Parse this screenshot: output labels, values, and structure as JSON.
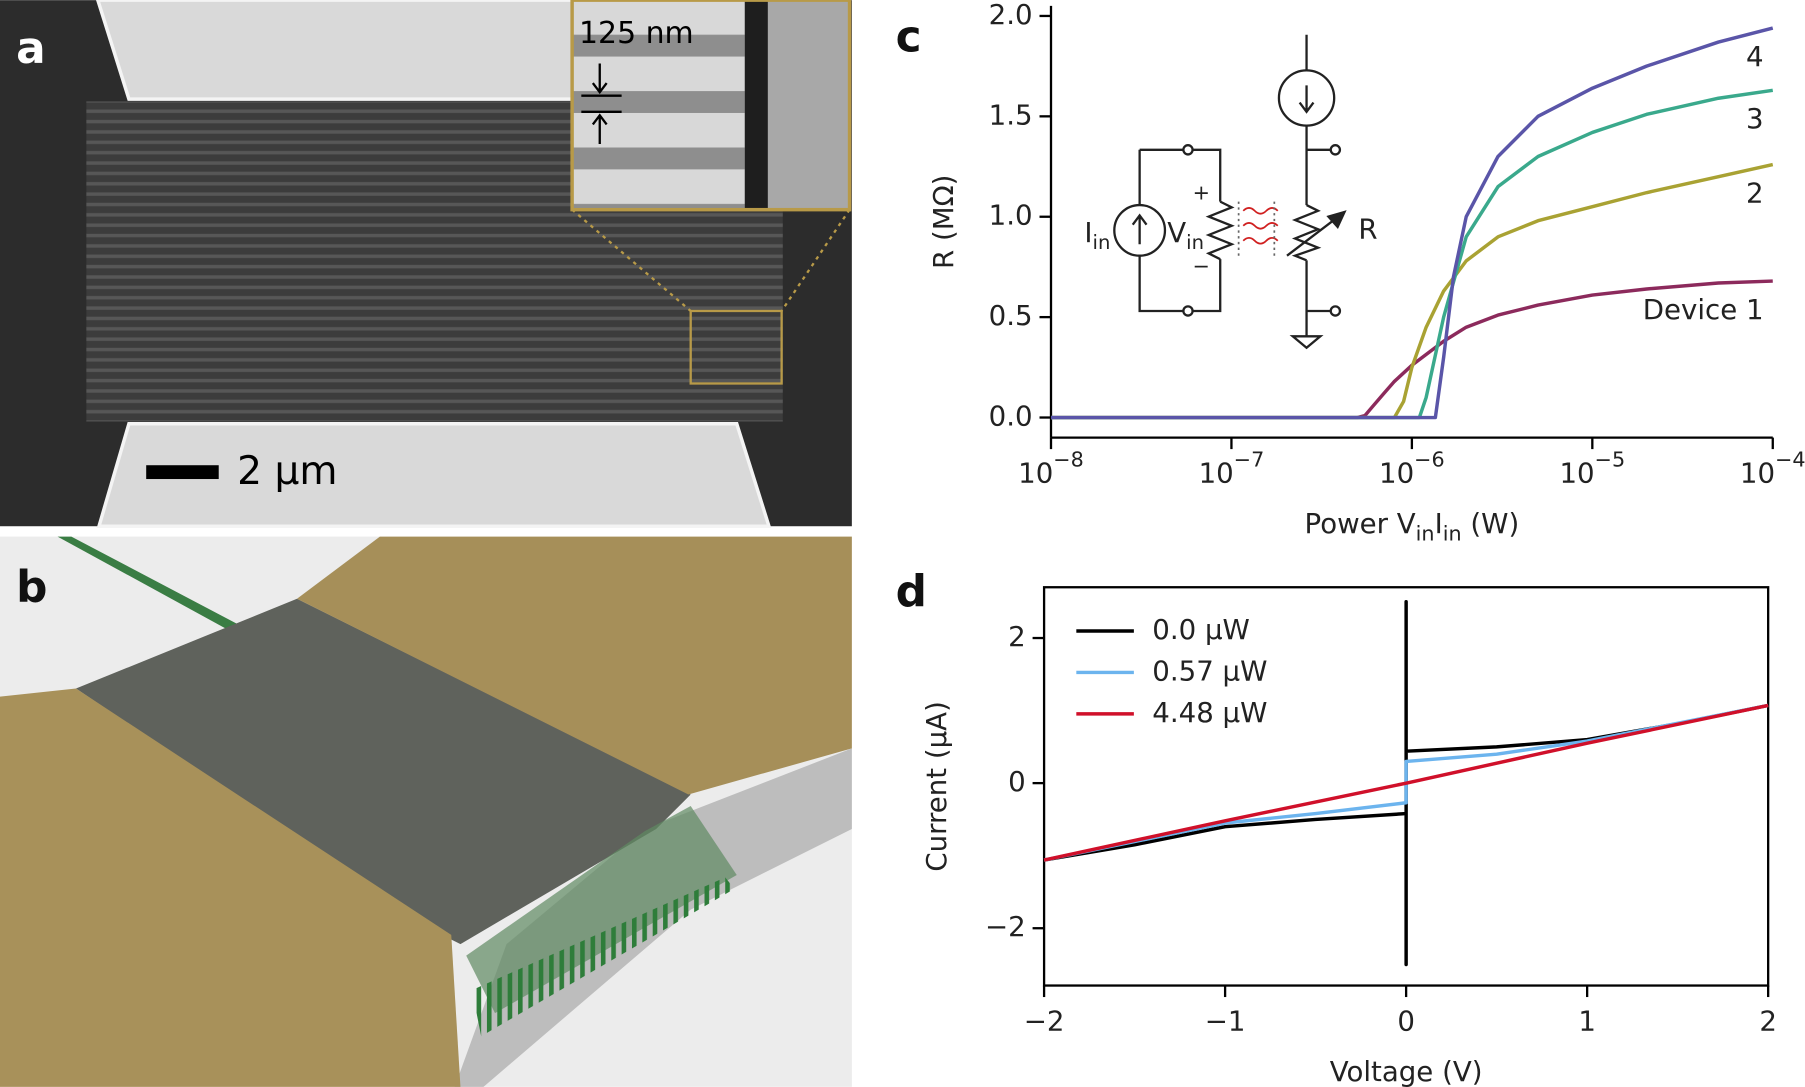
{
  "panel_labels": [
    "a",
    "b",
    "c",
    "d"
  ],
  "panel_a": {
    "inset_scale": "125 nm",
    "scale_bar": "2 µm"
  },
  "chart_data": [
    {
      "type": "line",
      "log_x": true,
      "xlabel": [
        {
          "text": "Power V"
        },
        {
          "sub": "in"
        },
        {
          "text": "I"
        },
        {
          "sub": "in"
        },
        {
          "text": " (W)"
        }
      ],
      "ylabel": "R  (MΩ)",
      "xlim": [
        1e-08,
        0.0001
      ],
      "ylim": [
        -0.1,
        2.05
      ],
      "xticks": [
        {
          "value": 1e-08,
          "label": "10",
          "exponent": "−8"
        },
        {
          "value": 1e-07,
          "label": "10",
          "exponent": "−7"
        },
        {
          "value": 1e-06,
          "label": "10",
          "exponent": "−6"
        },
        {
          "value": 1e-05,
          "label": "10",
          "exponent": "−5"
        },
        {
          "value": 0.0001,
          "label": "10",
          "exponent": "−4"
        }
      ],
      "yticks": [
        {
          "value": 0,
          "label": "0.0"
        },
        0.5,
        {
          "value": 1,
          "label": "1.0"
        },
        1.5,
        {
          "value": 2,
          "label": "2.0"
        }
      ],
      "inset": {
        "current_source": {
          "text": "I",
          "sub": "in"
        },
        "voltage": {
          "text": "V",
          "sub": "in"
        },
        "plus": "+",
        "minus": "−",
        "resistor": "R"
      },
      "series": [
        {
          "name": "Device 1",
          "color": "#8c2a5c",
          "x": [
            1e-08,
            5e-07,
            5.5e-07,
            6e-07,
            7e-07,
            8e-07,
            1e-06,
            1.5e-06,
            2e-06,
            3e-06,
            5e-06,
            1e-05,
            2e-05,
            5e-05,
            0.0001
          ],
          "values": [
            0,
            0,
            0.01,
            0.05,
            0.12,
            0.18,
            0.26,
            0.38,
            0.45,
            0.51,
            0.56,
            0.61,
            0.64,
            0.67,
            0.68
          ]
        },
        {
          "name": "2",
          "color": "#a9a233",
          "x": [
            1e-08,
            8e-07,
            9e-07,
            1e-06,
            1.2e-06,
            1.5e-06,
            2e-06,
            3e-06,
            5e-06,
            1e-05,
            2e-05,
            5e-05,
            0.0001
          ],
          "values": [
            0,
            0,
            0.08,
            0.25,
            0.45,
            0.63,
            0.78,
            0.9,
            0.98,
            1.05,
            1.12,
            1.2,
            1.26
          ]
        },
        {
          "name": "3",
          "color": "#3aa98c",
          "x": [
            1e-08,
            1.1e-06,
            1.2e-06,
            1.5e-06,
            2e-06,
            3e-06,
            5e-06,
            1e-05,
            2e-05,
            5e-05,
            0.0001
          ],
          "values": [
            0,
            0,
            0.1,
            0.5,
            0.9,
            1.15,
            1.3,
            1.42,
            1.51,
            1.59,
            1.63
          ]
        },
        {
          "name": "4",
          "color": "#5a55a8",
          "x": [
            1e-08,
            1.35e-06,
            1.5e-06,
            1.7e-06,
            2e-06,
            3e-06,
            5e-06,
            1e-05,
            2e-05,
            5e-05,
            0.0001
          ],
          "values": [
            0,
            0,
            0.3,
            0.7,
            1.0,
            1.3,
            1.5,
            1.64,
            1.75,
            1.87,
            1.94
          ]
        }
      ]
    },
    {
      "type": "line",
      "log_x": false,
      "xlabel": [
        {
          "text": "Voltage (V)"
        }
      ],
      "ylabel": "Current (µA)",
      "xlim": [
        -2,
        2
      ],
      "ylim": [
        -2.79,
        2.7
      ],
      "xticks": [
        {
          "value": -2,
          "label": "−2"
        },
        {
          "value": -1,
          "label": "−1"
        },
        0,
        1,
        2
      ],
      "yticks": [
        {
          "value": -2,
          "label": "−2"
        },
        0,
        2
      ],
      "legend": "upper left",
      "series": [
        {
          "name": "0.0 µW",
          "color": "#000000",
          "x": [
            -2,
            -1.5,
            -1,
            -0.5,
            0,
            0,
            0,
            0,
            0.5,
            1,
            1.5,
            2
          ],
          "values": [
            -1.06,
            -0.85,
            -0.6,
            -0.5,
            -0.42,
            -2.5,
            2.5,
            0.44,
            0.5,
            0.6,
            0.82,
            1.07
          ]
        },
        {
          "name": "0.57 µW",
          "color": "#6cb4ee",
          "x": [
            -2,
            -1,
            -0.5,
            0,
            0,
            0.5,
            1,
            2
          ],
          "values": [
            -1.06,
            -0.55,
            -0.42,
            -0.27,
            0.3,
            0.4,
            0.58,
            1.07
          ]
        },
        {
          "name": "4.48 µW",
          "color": "#d0102a",
          "x": [
            -2,
            -1,
            0,
            1,
            2
          ],
          "values": [
            -1.06,
            -0.52,
            0,
            0.55,
            1.07
          ]
        }
      ]
    }
  ]
}
